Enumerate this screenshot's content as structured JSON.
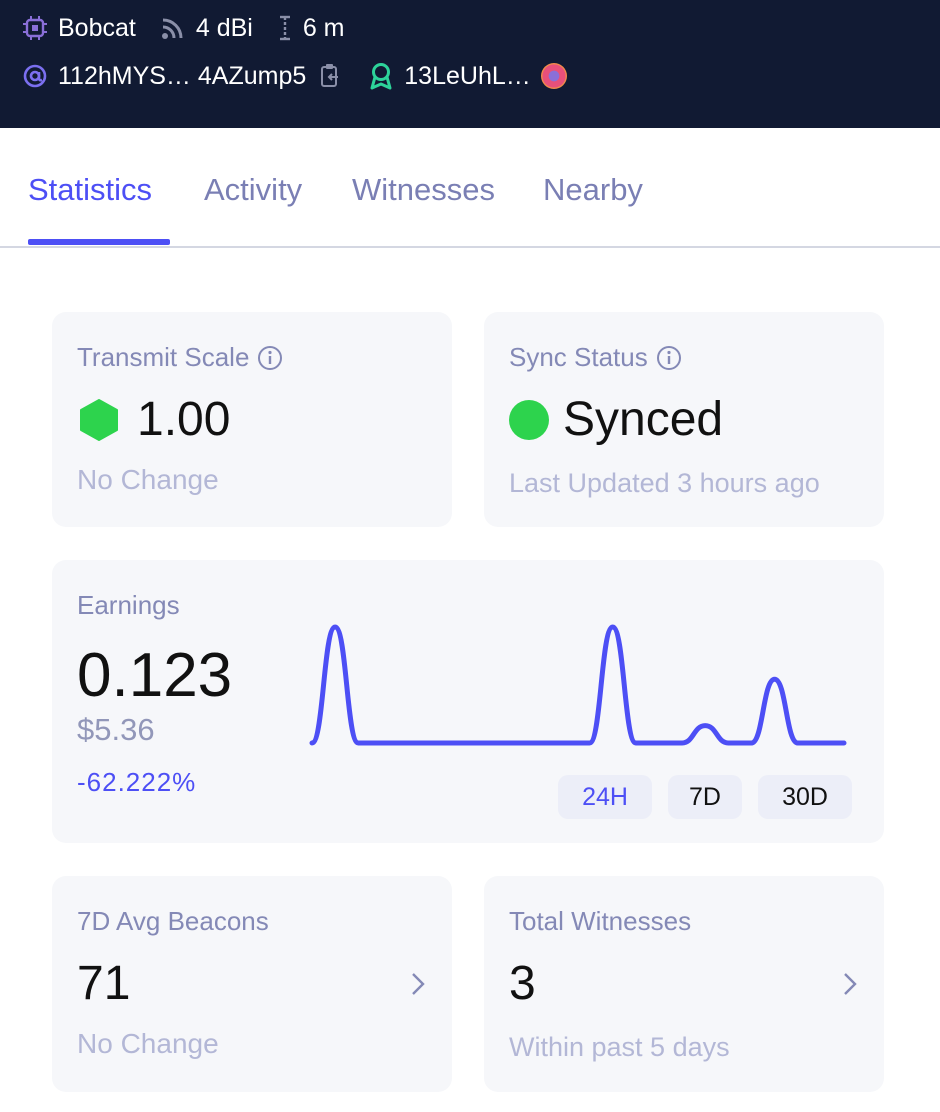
{
  "header": {
    "miner_model": "Bobcat",
    "antenna_gain": "4 dBi",
    "elevation": "6 m",
    "address": "112hMYS… 4AZump5",
    "owner": "13LeUhL…",
    "colors": {
      "accent_purple": "#8a6fd8",
      "owner_green": "#2dd39a",
      "background": "#111a33"
    },
    "icons": [
      "chip-icon",
      "wifi-signal-icon",
      "elevation-icon",
      "at-icon",
      "copy-icon",
      "owner-ribbon-icon",
      "owner-avatar"
    ]
  },
  "tabs": [
    {
      "label": "Statistics",
      "active": true
    },
    {
      "label": "Activity",
      "active": false
    },
    {
      "label": "Witnesses",
      "active": false
    },
    {
      "label": "Nearby",
      "active": false
    }
  ],
  "transmit_scale": {
    "title": "Transmit Scale",
    "value": "1.00",
    "change": "No Change"
  },
  "sync_status": {
    "title": "Sync Status",
    "value": "Synced",
    "last_updated": "Last Updated 3 hours ago"
  },
  "earnings": {
    "title": "Earnings",
    "value": "0.123",
    "usd": "$5.36",
    "change": "-62.222%",
    "ranges": [
      {
        "label": "24H",
        "active": true
      },
      {
        "label": "7D",
        "active": false
      },
      {
        "label": "30D",
        "active": false
      }
    ]
  },
  "beacons": {
    "title": "7D Avg Beacons",
    "value": "71",
    "change": "No Change"
  },
  "witnesses": {
    "title": "Total Witnesses",
    "value": "3",
    "period": "Within past 5 days"
  },
  "chart_data": {
    "type": "line",
    "color": "#4d4ff5",
    "x": [
      0,
      1,
      2,
      3,
      4,
      5,
      6,
      7,
      8,
      9,
      10,
      11,
      12,
      13,
      14,
      15,
      16,
      17,
      18,
      19,
      20,
      21,
      22,
      23
    ],
    "values": [
      0,
      1,
      0,
      0,
      0,
      0,
      0,
      0,
      0,
      0,
      0,
      0,
      0,
      1,
      0,
      0,
      0,
      0.15,
      0,
      0,
      0.55,
      0,
      0,
      0
    ],
    "title": "",
    "xlabel": "",
    "ylabel": "",
    "grid": false
  }
}
